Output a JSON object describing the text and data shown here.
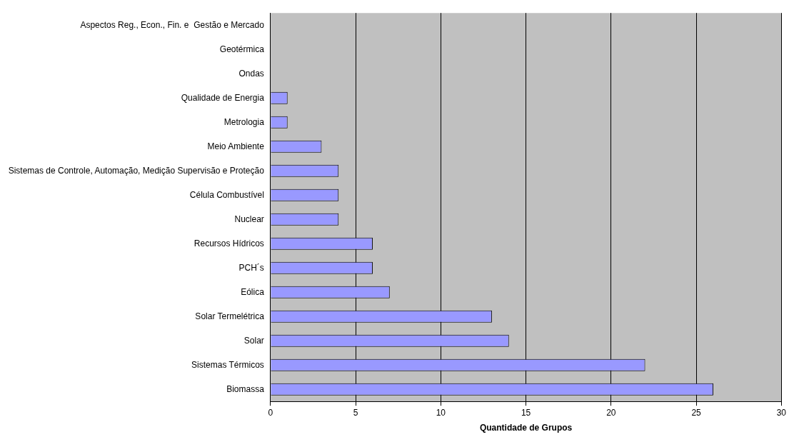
{
  "chart_data": {
    "type": "bar",
    "orientation": "horizontal",
    "xlabel": "Quantidade de Grupos",
    "categories": [
      "Aspectos Reg., Econ., Fin. e  Gestão e Mercado",
      "Geotérmica",
      "Ondas",
      "Qualidade de Energia",
      "Metrologia",
      "Meio Ambiente",
      "Sistemas de Controle, Automação, Medição Supervisão e Proteção",
      "Célula Combustível",
      "Nuclear",
      "Recursos Hídricos",
      "PCH´s",
      "Eólica",
      "Solar Termelétrica",
      "Solar",
      "Sistemas Térmicos",
      "Biomassa"
    ],
    "values": [
      0,
      0,
      0,
      1,
      1,
      3,
      4,
      4,
      4,
      6,
      6,
      7,
      13,
      14,
      22,
      26
    ],
    "color": "#9999ff",
    "xlim": [
      0,
      30
    ],
    "xticks": [
      0,
      5,
      10,
      15,
      20,
      25,
      30
    ],
    "grid": "x",
    "legend": false
  }
}
